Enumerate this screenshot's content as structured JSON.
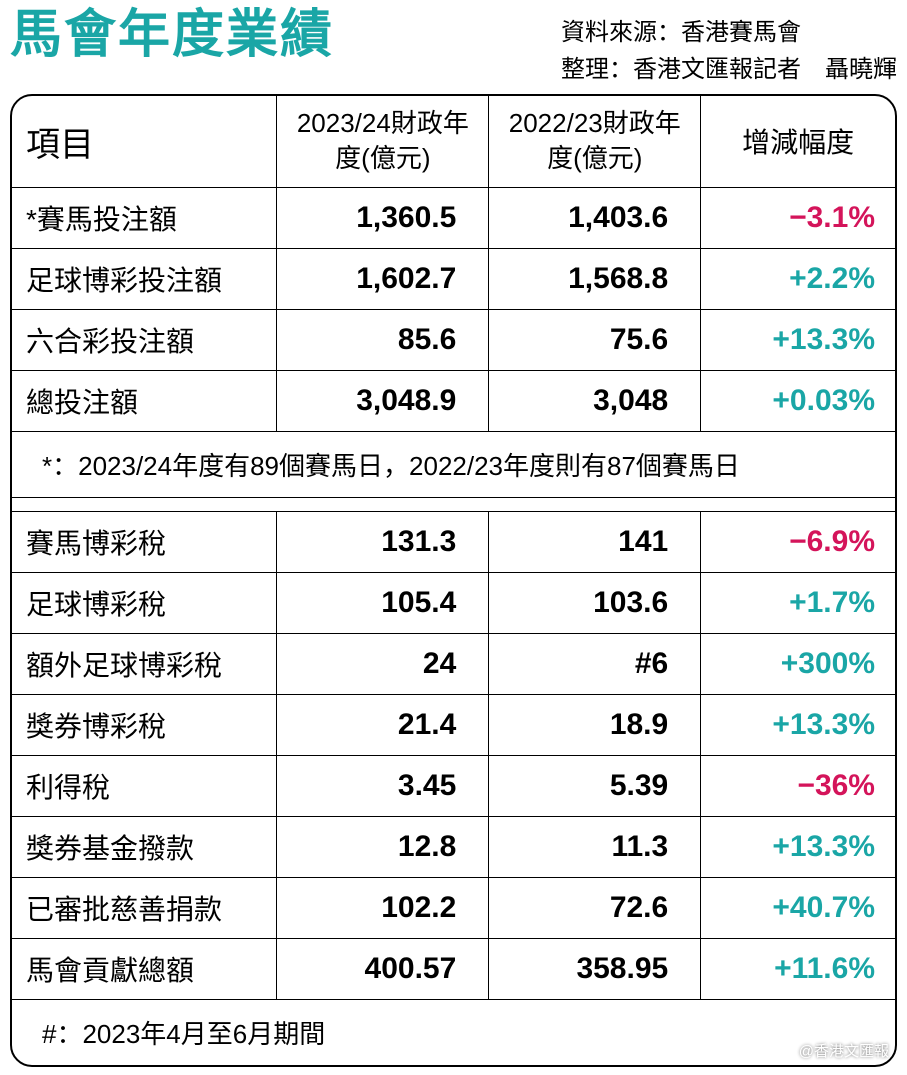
{
  "colors": {
    "title": "#1aa6a6",
    "positive": "#1aa6a6",
    "negative": "#d4145a",
    "text": "#000000",
    "background": "#ffffff",
    "border": "#000000"
  },
  "typography": {
    "title_fontsize": 52,
    "title_weight": 900,
    "meta_fontsize": 24,
    "header_fontsize": 28,
    "cell_fontsize": 28,
    "num_fontsize": 30,
    "num_weight": 700
  },
  "header": {
    "title": "馬會年度業績",
    "source_label": "資料來源：",
    "source_value": "香港賽馬會",
    "compiled_label": "整理：",
    "compiled_value": "香港文匯報記者　聶曉輝"
  },
  "table": {
    "columns": {
      "item": "項目",
      "fy2324": "2023/24財政年度(億元)",
      "fy2223": "2022/23財政年度(億元)",
      "change": "增減幅度"
    },
    "section1": [
      {
        "item": "*賽馬投注額",
        "fy2324": "1,360.5",
        "fy2223": "1,403.6",
        "change": "−3.1%",
        "dir": "neg"
      },
      {
        "item": "足球博彩投注額",
        "fy2324": "1,602.7",
        "fy2223": "1,568.8",
        "change": "+2.2%",
        "dir": "pos"
      },
      {
        "item": "六合彩投注額",
        "fy2324": "85.6",
        "fy2223": "75.6",
        "change": "+13.3%",
        "dir": "pos"
      },
      {
        "item": "總投注額",
        "fy2324": "3,048.9",
        "fy2223": "3,048",
        "change": "+0.03%",
        "dir": "pos"
      }
    ],
    "note1": "*：2023/24年度有89個賽馬日，2022/23年度則有87個賽馬日",
    "section2": [
      {
        "item": "賽馬博彩稅",
        "fy2324": "131.3",
        "fy2223": "141",
        "change": "−6.9%",
        "dir": "neg"
      },
      {
        "item": "足球博彩稅",
        "fy2324": "105.4",
        "fy2223": "103.6",
        "change": "+1.7%",
        "dir": "pos"
      },
      {
        "item": "額外足球博彩稅",
        "fy2324": "24",
        "fy2223": "#6",
        "change": "+300%",
        "dir": "pos"
      },
      {
        "item": "獎券博彩稅",
        "fy2324": "21.4",
        "fy2223": "18.9",
        "change": "+13.3%",
        "dir": "pos"
      },
      {
        "item": "利得稅",
        "fy2324": "3.45",
        "fy2223": "5.39",
        "change": "−36%",
        "dir": "neg"
      },
      {
        "item": "獎券基金撥款",
        "fy2324": "12.8",
        "fy2223": "11.3",
        "change": "+13.3%",
        "dir": "pos"
      },
      {
        "item": "已審批慈善捐款",
        "fy2324": "102.2",
        "fy2223": "72.6",
        "change": "+40.7%",
        "dir": "pos"
      },
      {
        "item": "馬會貢獻總額",
        "fy2324": "400.57",
        "fy2223": "358.95",
        "change": "+11.6%",
        "dir": "pos"
      }
    ],
    "note2": "#：2023年4月至6月期間"
  },
  "watermark": "@香港文匯報"
}
